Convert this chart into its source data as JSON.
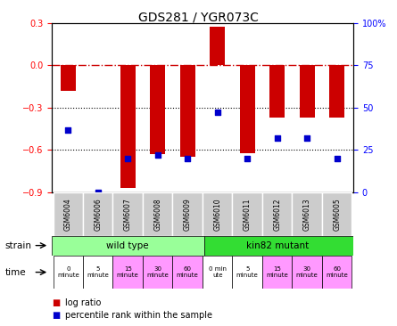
{
  "title": "GDS281 / YGR073C",
  "samples": [
    "GSM6004",
    "GSM6006",
    "GSM6007",
    "GSM6008",
    "GSM6009",
    "GSM6010",
    "GSM6011",
    "GSM6012",
    "GSM6013",
    "GSM6005"
  ],
  "log_ratio": [
    -0.18,
    0.0,
    -0.87,
    -0.63,
    -0.65,
    0.27,
    -0.62,
    -0.37,
    -0.37,
    -0.37
  ],
  "percentile": [
    37,
    0,
    20,
    22,
    20,
    47,
    20,
    32,
    32,
    20
  ],
  "ylim_left": [
    -0.9,
    0.3
  ],
  "ylim_right": [
    0,
    100
  ],
  "yticks_left": [
    0.3,
    0.0,
    -0.3,
    -0.6,
    -0.9
  ],
  "yticks_right": [
    100,
    75,
    50,
    25,
    0
  ],
  "bar_color": "#cc0000",
  "dot_color": "#0000cc",
  "zero_line_color": "#cc0000",
  "dotted_line_color": "#000000",
  "bg_color": "#ffffff",
  "strain_wt_color": "#99ff99",
  "strain_mut_color": "#33dd33",
  "time_white_color": "#ffffff",
  "time_pink_color": "#ff99ff",
  "sample_bg_color": "#cccccc",
  "wt_count": 5,
  "mut_count": 5,
  "time_labels_wt": [
    "0\nminute",
    "5\nminute",
    "15\nminute",
    "30\nminute",
    "60\nminute"
  ],
  "time_labels_mut": [
    "0 min\nute",
    "5\nminute",
    "15\nminute",
    "30\nminute",
    "60\nminute"
  ],
  "time_colors_wt": [
    "#ffffff",
    "#ffffff",
    "#ff99ff",
    "#ff99ff",
    "#ff99ff"
  ],
  "time_colors_mut": [
    "#ffffff",
    "#ffffff",
    "#ff99ff",
    "#ff99ff",
    "#ff99ff"
  ],
  "legend_bar_label": "log ratio",
  "legend_dot_label": "percentile rank within the sample",
  "strain_label": "strain",
  "time_label": "time",
  "wt_label": "wild type",
  "mut_label": "kin82 mutant"
}
